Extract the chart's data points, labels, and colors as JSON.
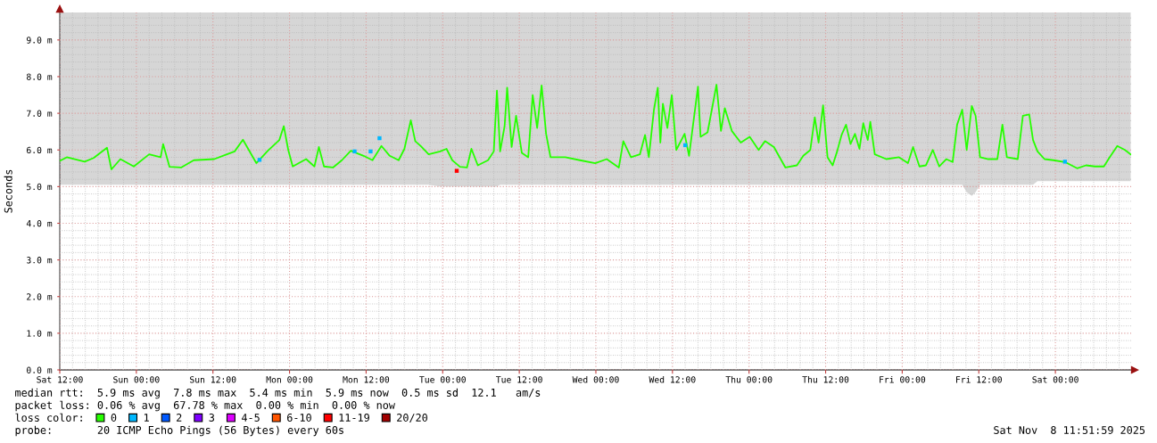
{
  "chart_data": {
    "type": "line",
    "ylabel": "Seconds",
    "legend": "bottom",
    "legend_title": "loss color:",
    "grid": true,
    "marker": "none",
    "line_style": "solid",
    "xlim": [
      "2025-11-01T12:00",
      "2025-11-08T11:52"
    ],
    "ylim": [
      0,
      9.75
    ],
    "xticks": [
      {
        "value": "2025-11-01T12:00",
        "label": "Sat 12:00"
      },
      {
        "value": "2025-11-02T00:00",
        "label": "Sun 00:00"
      },
      {
        "value": "2025-11-02T12:00",
        "label": "Sun 12:00"
      },
      {
        "value": "2025-11-03T00:00",
        "label": "Mon 00:00"
      },
      {
        "value": "2025-11-03T12:00",
        "label": "Mon 12:00"
      },
      {
        "value": "2025-11-04T00:00",
        "label": "Tue 00:00"
      },
      {
        "value": "2025-11-04T12:00",
        "label": "Tue 12:00"
      },
      {
        "value": "2025-11-05T00:00",
        "label": "Wed 00:00"
      },
      {
        "value": "2025-11-05T12:00",
        "label": "Wed 12:00"
      },
      {
        "value": "2025-11-06T00:00",
        "label": "Thu 00:00"
      },
      {
        "value": "2025-11-06T12:00",
        "label": "Thu 12:00"
      },
      {
        "value": "2025-11-07T00:00",
        "label": "Fri 00:00"
      },
      {
        "value": "2025-11-07T12:00",
        "label": "Fri 12:00"
      },
      {
        "value": "2025-11-08T00:00",
        "label": "Sat 00:00"
      },
      {
        "value": "2025-11-01T14:00",
        "label": null
      },
      {
        "value": "2025-11-01T16:00",
        "label": null
      },
      {
        "value": "2025-11-01T18:00",
        "label": null
      },
      {
        "value": "2025-11-01T20:00",
        "label": null
      },
      {
        "value": "2025-11-01T22:00",
        "label": null
      },
      {
        "value": "2025-11-02T02:00",
        "label": null
      },
      {
        "value": "2025-11-02T04:00",
        "label": null
      },
      {
        "value": "2025-11-02T06:00",
        "label": null
      },
      {
        "value": "2025-11-02T08:00",
        "label": null
      },
      {
        "value": "2025-11-02T10:00",
        "label": null
      },
      {
        "value": "2025-11-02T14:00",
        "label": null
      },
      {
        "value": "2025-11-02T16:00",
        "label": null
      },
      {
        "value": "2025-11-02T18:00",
        "label": null
      },
      {
        "value": "2025-11-02T20:00",
        "label": null
      },
      {
        "value": "2025-11-02T22:00",
        "label": null
      },
      {
        "value": "2025-11-03T02:00",
        "label": null
      },
      {
        "value": "2025-11-03T04:00",
        "label": null
      },
      {
        "value": "2025-11-03T06:00",
        "label": null
      },
      {
        "value": "2025-11-03T08:00",
        "label": null
      },
      {
        "value": "2025-11-03T10:00",
        "label": null
      },
      {
        "value": "2025-11-03T14:00",
        "label": null
      },
      {
        "value": "2025-11-03T16:00",
        "label": null
      },
      {
        "value": "2025-11-03T18:00",
        "label": null
      },
      {
        "value": "2025-11-03T20:00",
        "label": null
      },
      {
        "value": "2025-11-03T22:00",
        "label": null
      },
      {
        "value": "2025-11-04T02:00",
        "label": null
      },
      {
        "value": "2025-11-04T04:00",
        "label": null
      },
      {
        "value": "2025-11-04T06:00",
        "label": null
      },
      {
        "value": "2025-11-04T08:00",
        "label": null
      },
      {
        "value": "2025-11-04T10:00",
        "label": null
      },
      {
        "value": "2025-11-04T14:00",
        "label": null
      },
      {
        "value": "2025-11-04T16:00",
        "label": null
      },
      {
        "value": "2025-11-04T18:00",
        "label": null
      },
      {
        "value": "2025-11-04T20:00",
        "label": null
      },
      {
        "value": "2025-11-04T22:00",
        "label": null
      },
      {
        "value": "2025-11-05T02:00",
        "label": null
      },
      {
        "value": "2025-11-05T04:00",
        "label": null
      },
      {
        "value": "2025-11-05T06:00",
        "label": null
      },
      {
        "value": "2025-11-05T08:00",
        "label": null
      },
      {
        "value": "2025-11-05T10:00",
        "label": null
      },
      {
        "value": "2025-11-05T14:00",
        "label": null
      },
      {
        "value": "2025-11-05T16:00",
        "label": null
      },
      {
        "value": "2025-11-05T18:00",
        "label": null
      },
      {
        "value": "2025-11-05T20:00",
        "label": null
      },
      {
        "value": "2025-11-05T22:00",
        "label": null
      },
      {
        "value": "2025-11-06T02:00",
        "label": null
      },
      {
        "value": "2025-11-06T04:00",
        "label": null
      },
      {
        "value": "2025-11-06T06:00",
        "label": null
      },
      {
        "value": "2025-11-06T08:00",
        "label": null
      },
      {
        "value": "2025-11-06T10:00",
        "label": null
      },
      {
        "value": "2025-11-06T14:00",
        "label": null
      },
      {
        "value": "2025-11-06T16:00",
        "label": null
      },
      {
        "value": "2025-11-06T18:00",
        "label": null
      },
      {
        "value": "2025-11-06T20:00",
        "label": null
      },
      {
        "value": "2025-11-06T22:00",
        "label": null
      },
      {
        "value": "2025-11-07T02:00",
        "label": null
      },
      {
        "value": "2025-11-07T04:00",
        "label": null
      },
      {
        "value": "2025-11-07T06:00",
        "label": null
      },
      {
        "value": "2025-11-07T08:00",
        "label": null
      },
      {
        "value": "2025-11-07T10:00",
        "label": null
      },
      {
        "value": "2025-11-07T14:00",
        "label": null
      },
      {
        "value": "2025-11-07T16:00",
        "label": null
      },
      {
        "value": "2025-11-07T18:00",
        "label": null
      },
      {
        "value": "2025-11-07T20:00",
        "label": null
      },
      {
        "value": "2025-11-07T22:00",
        "label": null
      },
      {
        "value": "2025-11-08T02:00",
        "label": null
      },
      {
        "value": "2025-11-08T04:00",
        "label": null
      },
      {
        "value": "2025-11-08T06:00",
        "label": null
      },
      {
        "value": "2025-11-08T08:00",
        "label": null
      },
      {
        "value": "2025-11-08T10:00",
        "label": null
      }
    ],
    "yticks": [
      {
        "value": 0,
        "label": "0.0 m"
      },
      {
        "value": 1,
        "label": "1.0 m"
      },
      {
        "value": 2,
        "label": "2.0 m"
      },
      {
        "value": 3,
        "label": "3.0 m"
      },
      {
        "value": 4,
        "label": "4.0 m"
      },
      {
        "value": 5,
        "label": "5.0 m"
      },
      {
        "value": 6,
        "label": "6.0 m"
      },
      {
        "value": 7,
        "label": "7.0 m"
      },
      {
        "value": 8,
        "label": "8.0 m"
      },
      {
        "value": 9,
        "label": "9.0 m"
      },
      {
        "value": 0.2,
        "label": null
      },
      {
        "value": 0.4,
        "label": null
      },
      {
        "value": 0.6,
        "label": null
      },
      {
        "value": 0.8,
        "label": null
      },
      {
        "value": 1.2,
        "label": null
      },
      {
        "value": 1.4,
        "label": null
      },
      {
        "value": 1.6,
        "label": null
      },
      {
        "value": 1.8,
        "label": null
      },
      {
        "value": 2.2,
        "label": null
      },
      {
        "value": 2.4,
        "label": null
      },
      {
        "value": 2.6,
        "label": null
      },
      {
        "value": 2.8,
        "label": null
      },
      {
        "value": 3.2,
        "label": null
      },
      {
        "value": 3.4,
        "label": null
      },
      {
        "value": 3.6,
        "label": null
      },
      {
        "value": 3.8,
        "label": null
      },
      {
        "value": 4.2,
        "label": null
      },
      {
        "value": 4.4,
        "label": null
      },
      {
        "value": 4.6,
        "label": null
      },
      {
        "value": 4.8,
        "label": null
      },
      {
        "value": 5.2,
        "label": null
      },
      {
        "value": 5.4,
        "label": null
      },
      {
        "value": 5.6,
        "label": null
      },
      {
        "value": 5.8,
        "label": null
      },
      {
        "value": 6.2,
        "label": null
      },
      {
        "value": 6.4,
        "label": null
      },
      {
        "value": 6.6,
        "label": null
      },
      {
        "value": 6.8,
        "label": null
      },
      {
        "value": 7.2,
        "label": null
      },
      {
        "value": 7.4,
        "label": null
      },
      {
        "value": 7.6,
        "label": null
      },
      {
        "value": 7.8,
        "label": null
      },
      {
        "value": 8.2,
        "label": null
      },
      {
        "value": 8.4,
        "label": null
      },
      {
        "value": 8.6,
        "label": null
      },
      {
        "value": 8.8,
        "label": null
      },
      {
        "value": 9.2,
        "label": null
      },
      {
        "value": 9.4,
        "label": null
      },
      {
        "value": 9.6,
        "label": null
      }
    ],
    "series": [
      {
        "name": "0",
        "color": "#26ff00",
        "x": [
          "2025-11-01T12:00",
          "2025-11-01T13:06",
          "2025-11-01T15:54",
          "2025-11-01T17:18",
          "2025-11-01T19:24",
          "2025-11-01T20:06",
          "2025-11-01T21:30",
          "2025-11-01T23:36",
          "2025-11-02T02:00",
          "2025-11-02T03:48",
          "2025-11-02T04:12",
          "2025-11-02T05:12",
          "2025-11-02T07:00",
          "2025-11-02T09:00",
          "2025-11-02T12:12",
          "2025-11-02T15:24",
          "2025-11-02T16:42",
          "2025-11-02T18:48",
          "2025-11-02T20:36",
          "2025-11-02T22:24",
          "2025-11-02T23:06",
          "2025-11-02T23:48",
          "2025-11-03T00:30",
          "2025-11-03T02:36",
          "2025-11-03T03:54",
          "2025-11-03T04:36",
          "2025-11-03T05:24",
          "2025-11-03T06:48",
          "2025-11-03T08:12",
          "2025-11-03T09:36",
          "2025-11-03T11:36",
          "2025-11-03T13:00",
          "2025-11-03T14:24",
          "2025-11-03T15:42",
          "2025-11-03T17:06",
          "2025-11-03T18:00",
          "2025-11-03T19:00",
          "2025-11-03T19:42",
          "2025-11-03T20:36",
          "2025-11-03T21:48",
          "2025-11-03T23:36",
          "2025-11-04T00:36",
          "2025-11-04T01:30",
          "2025-11-04T02:42",
          "2025-11-04T03:48",
          "2025-11-04T04:30",
          "2025-11-04T05:30",
          "2025-11-04T07:06",
          "2025-11-04T08:00",
          "2025-11-04T08:30",
          "2025-11-04T09:00",
          "2025-11-04T09:42",
          "2025-11-04T10:06",
          "2025-11-04T10:48",
          "2025-11-04T11:30",
          "2025-11-04T12:24",
          "2025-11-04T13:24",
          "2025-11-04T14:06",
          "2025-11-04T14:48",
          "2025-11-04T15:30",
          "2025-11-04T16:12",
          "2025-11-04T16:54",
          "2025-11-04T19:12",
          "2025-11-04T21:30",
          "2025-11-04T23:54",
          "2025-11-05T01:42",
          "2025-11-05T03:36",
          "2025-11-05T04:18",
          "2025-11-05T05:30",
          "2025-11-05T06:54",
          "2025-11-05T07:42",
          "2025-11-05T08:18",
          "2025-11-05T09:06",
          "2025-11-05T09:42",
          "2025-11-05T10:06",
          "2025-11-05T10:30",
          "2025-11-05T11:12",
          "2025-11-05T11:54",
          "2025-11-05T12:36",
          "2025-11-05T13:54",
          "2025-11-05T14:36",
          "2025-11-05T16:00",
          "2025-11-05T16:24",
          "2025-11-05T17:30",
          "2025-11-05T18:54",
          "2025-11-05T19:36",
          "2025-11-05T20:12",
          "2025-11-05T21:18",
          "2025-11-05T22:42",
          "2025-11-06T00:06",
          "2025-11-06T01:30",
          "2025-11-06T02:30",
          "2025-11-06T03:54",
          "2025-11-06T05:42",
          "2025-11-06T07:30",
          "2025-11-06T08:30",
          "2025-11-06T09:36",
          "2025-11-06T10:18",
          "2025-11-06T10:54",
          "2025-11-06T11:36",
          "2025-11-06T12:18",
          "2025-11-06T13:06",
          "2025-11-06T13:48",
          "2025-11-06T14:30",
          "2025-11-06T15:12",
          "2025-11-06T15:54",
          "2025-11-06T16:36",
          "2025-11-06T17:18",
          "2025-11-06T17:54",
          "2025-11-06T18:36",
          "2025-11-06T19:00",
          "2025-11-06T19:42",
          "2025-11-06T21:30",
          "2025-11-06T23:30",
          "2025-11-07T00:54",
          "2025-11-07T01:42",
          "2025-11-07T02:42",
          "2025-11-07T03:42",
          "2025-11-07T04:48",
          "2025-11-07T05:48",
          "2025-11-07T06:54",
          "2025-11-07T07:54",
          "2025-11-07T08:36",
          "2025-11-07T09:24",
          "2025-11-07T10:06",
          "2025-11-07T10:54",
          "2025-11-07T11:30",
          "2025-11-07T12:12",
          "2025-11-07T13:30",
          "2025-11-07T14:54",
          "2025-11-07T15:42",
          "2025-11-07T16:24",
          "2025-11-07T18:06",
          "2025-11-07T18:54",
          "2025-11-07T19:54",
          "2025-11-07T20:30",
          "2025-11-07T21:12",
          "2025-11-07T22:18",
          "2025-11-07T23:42",
          "2025-11-08T01:30",
          "2025-11-08T03:24",
          "2025-11-08T04:48",
          "2025-11-08T06:12",
          "2025-11-08T07:36",
          "2025-11-08T08:30",
          "2025-11-08T09:42",
          "2025-11-08T10:54",
          "2025-11-08T11:48"
        ],
        "values": [
          5.7,
          5.8,
          5.68,
          5.78,
          6.06,
          5.47,
          5.75,
          5.55,
          5.88,
          5.8,
          6.16,
          5.54,
          5.52,
          5.72,
          5.75,
          5.96,
          6.28,
          5.64,
          5.98,
          6.27,
          6.65,
          6.0,
          5.55,
          5.75,
          5.55,
          6.08,
          5.55,
          5.52,
          5.72,
          5.98,
          5.84,
          5.72,
          6.11,
          5.84,
          5.72,
          6.03,
          6.81,
          6.24,
          6.1,
          5.88,
          5.96,
          6.03,
          5.72,
          5.54,
          5.52,
          6.03,
          5.58,
          5.72,
          5.96,
          7.62,
          5.96,
          6.65,
          7.7,
          6.08,
          6.93,
          5.92,
          5.8,
          7.5,
          6.6,
          7.76,
          6.44,
          5.8,
          5.8,
          5.72,
          5.64,
          5.75,
          5.52,
          6.24,
          5.8,
          5.88,
          6.41,
          5.8,
          7.1,
          7.7,
          6.2,
          7.26,
          6.6,
          7.5,
          6.0,
          6.44,
          5.84,
          7.73,
          6.36,
          6.48,
          7.78,
          6.52,
          7.14,
          6.52,
          6.2,
          6.36,
          6.0,
          6.24,
          6.08,
          5.52,
          5.58,
          5.84,
          6.0,
          6.89,
          6.2,
          7.22,
          5.8,
          5.58,
          5.96,
          6.41,
          6.69,
          6.16,
          6.44,
          6.03,
          6.73,
          6.27,
          6.77,
          5.88,
          5.75,
          5.8,
          5.64,
          6.08,
          5.55,
          5.58,
          6.0,
          5.55,
          5.75,
          5.67,
          6.69,
          7.1,
          6.0,
          7.2,
          6.93,
          5.8,
          5.75,
          5.75,
          6.69,
          5.8,
          5.75,
          6.93,
          6.97,
          6.27,
          5.96,
          5.75,
          5.72,
          5.67,
          5.5,
          5.58,
          5.55,
          5.55,
          5.8,
          6.11,
          6.0,
          5.88
        ],
        "lower": [
          5.05,
          5.05,
          5.05,
          5.05,
          5.05,
          5.05,
          5.05,
          5.05,
          5.05,
          5.05,
          5.05,
          5.05,
          5.05,
          5.05,
          5.05,
          5.05,
          5.05,
          5.05,
          5.05,
          5.05,
          5.05,
          5.05,
          5.05,
          5.05,
          5.05,
          5.05,
          5.05,
          5.05,
          5.05,
          5.05,
          5.05,
          5.05,
          5.05,
          5.05,
          5.05,
          5.05,
          5.05,
          5.05,
          5.05,
          5.05,
          5.0,
          5.0,
          5.0,
          5.0,
          5.0,
          5.0,
          5.0,
          5.0,
          5.0,
          5.0,
          5.05,
          5.05,
          5.05,
          5.05,
          5.05,
          5.05,
          5.05,
          5.05,
          5.05,
          5.05,
          5.05,
          5.05,
          5.05,
          5.05,
          5.05,
          5.05,
          5.05,
          5.05,
          5.05,
          5.05,
          5.05,
          5.05,
          5.05,
          5.05,
          5.05,
          5.05,
          5.05,
          5.05,
          5.05,
          5.05,
          5.05,
          5.05,
          5.05,
          5.05,
          5.05,
          5.05,
          5.05,
          5.05,
          5.05,
          5.05,
          5.05,
          5.05,
          5.05,
          5.05,
          5.05,
          5.05,
          5.05,
          5.05,
          5.05,
          5.05,
          5.05,
          5.05,
          5.05,
          5.05,
          5.05,
          5.05,
          5.05,
          5.05,
          5.05,
          5.05,
          5.05,
          5.05,
          5.05,
          5.05,
          5.05,
          5.05,
          5.05,
          5.05,
          5.05,
          5.05,
          5.05,
          5.05,
          5.05,
          5.05,
          4.85,
          4.75,
          4.85,
          5.05,
          5.05,
          5.05,
          5.05,
          5.05,
          5.05,
          5.05,
          5.05,
          5.05,
          5.15,
          5.15,
          5.15,
          5.15,
          5.15,
          5.15,
          5.15,
          5.15,
          5.15,
          5.15,
          5.15,
          5.15
        ],
        "upper": [
          9.75,
          9.75,
          9.75,
          9.75,
          9.75,
          9.75,
          9.75,
          9.75,
          9.75,
          9.75,
          9.75,
          9.75,
          9.75,
          9.75,
          9.75,
          9.75,
          9.75,
          9.75,
          9.75,
          9.75,
          9.75,
          9.75,
          9.75,
          9.75,
          9.75,
          9.75,
          9.75,
          9.75,
          9.75,
          9.75,
          9.75,
          9.75,
          9.75,
          9.75,
          9.75,
          9.75,
          9.75,
          9.75,
          9.75,
          9.75,
          9.75,
          9.75,
          9.75,
          9.75,
          9.75,
          9.75,
          9.75,
          9.75,
          9.75,
          9.75,
          9.75,
          9.75,
          9.75,
          9.75,
          9.75,
          9.75,
          9.75,
          9.75,
          9.75,
          9.75,
          9.75,
          9.75,
          9.75,
          9.75,
          9.75,
          9.75,
          9.75,
          9.75,
          9.75,
          9.75,
          9.75,
          9.75,
          9.75,
          9.75,
          9.75,
          9.75,
          9.75,
          9.75,
          9.75,
          9.75,
          9.75,
          9.75,
          9.75,
          9.75,
          9.75,
          9.75,
          9.75,
          9.75,
          9.75,
          9.75,
          9.75,
          9.75,
          9.75,
          9.75,
          9.75,
          9.75,
          9.75,
          9.75,
          9.75,
          9.75,
          9.75,
          9.75,
          9.75,
          9.75,
          9.75,
          9.75,
          9.75,
          9.75,
          9.75,
          9.75,
          9.75,
          9.75,
          9.75,
          9.75,
          9.75,
          9.75,
          9.75,
          9.75,
          9.75,
          9.75,
          9.75,
          9.75,
          9.75,
          9.75,
          9.75,
          9.75,
          9.75,
          9.75,
          9.75,
          9.75,
          9.75,
          9.75,
          9.75,
          9.75,
          9.75,
          9.75,
          9.75,
          9.75,
          9.75,
          9.75,
          9.75,
          9.75,
          9.75,
          9.75,
          9.75,
          9.75,
          9.75,
          9.75
        ]
      },
      {
        "name": "1",
        "type": "scatter",
        "marker": "square",
        "color": "#00b8ff",
        "x": [
          "2025-11-02T19:18",
          "2025-11-03T10:12",
          "2025-11-03T12:42",
          "2025-11-03T14:06",
          "2025-11-05T14:00",
          "2025-11-08T01:30"
        ],
        "values": [
          5.73,
          5.96,
          5.96,
          6.32,
          6.13,
          5.68
        ]
      },
      {
        "name": "2",
        "type": "scatter",
        "marker": "square",
        "color": "#0059ff"
      },
      {
        "name": "3",
        "type": "scatter",
        "marker": "square",
        "color": "#7e00ff"
      },
      {
        "name": "4-5",
        "type": "scatter",
        "marker": "square",
        "color": "#dd00ff"
      },
      {
        "name": "6-10",
        "type": "scatter",
        "marker": "square",
        "color": "#ff5500"
      },
      {
        "name": "11-19",
        "type": "scatter",
        "marker": "square",
        "color": "#ff0000",
        "x": [
          "2025-11-04T02:12"
        ],
        "values": [
          5.43
        ]
      },
      {
        "name": "20/20",
        "type": "scatter",
        "marker": "square",
        "color": "#a10000"
      }
    ],
    "annotations": [
      "median rtt:  5.9 ms avg  7.8 ms max  5.4 ms min  5.9 ms now  0.5 ms sd  12.1   am/s",
      "packet loss: 0.06 % avg  67.78 % max  0.00 % min  0.00 % now",
      "probe:       20 ICMP Echo Pings (56 Bytes) every 60s",
      "Sat Nov  8 11:51:59 2025"
    ]
  }
}
